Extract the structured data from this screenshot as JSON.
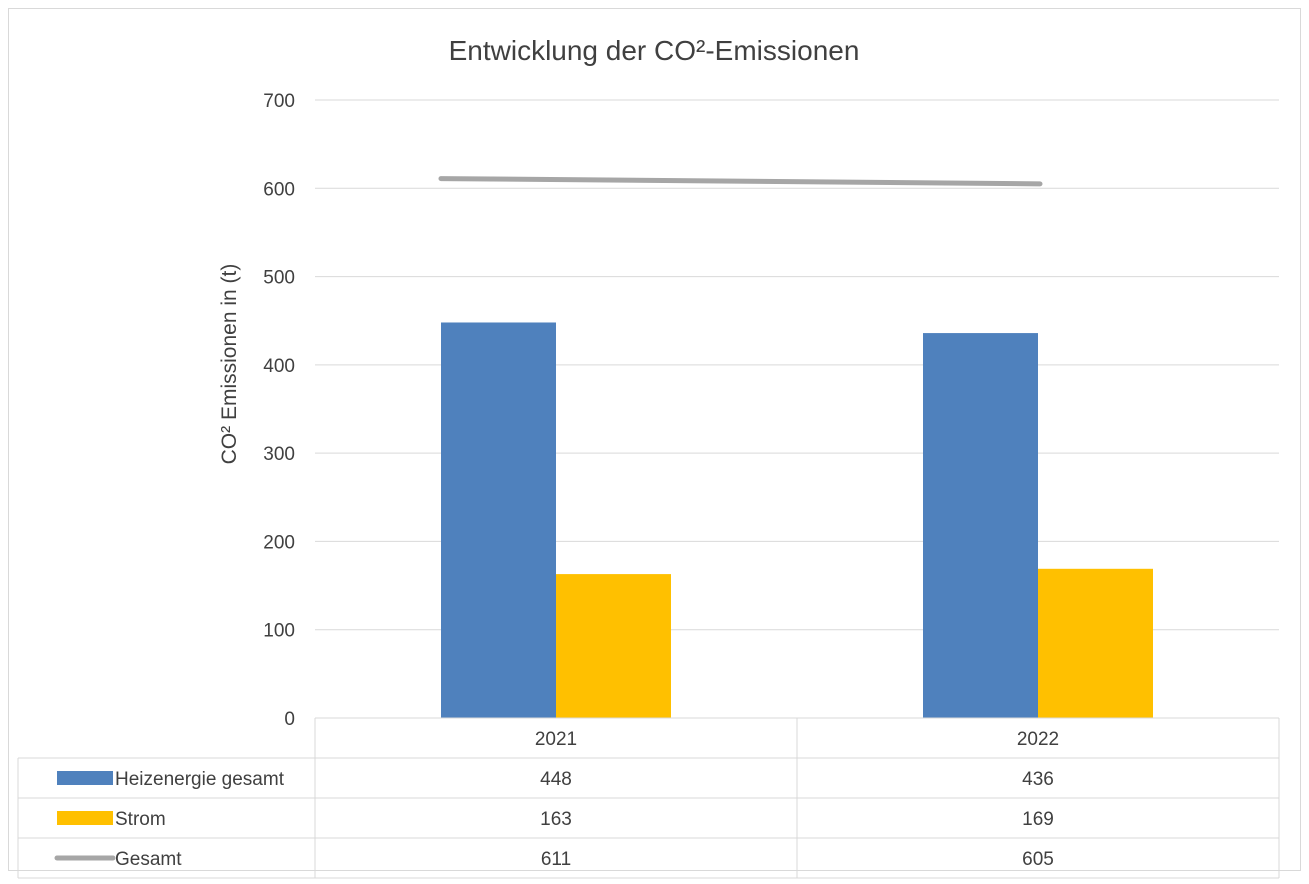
{
  "chart_data": {
    "type": "bar",
    "title": "Entwicklung der CO²-Emissionen",
    "xlabel": "",
    "ylabel": "CO² Emissionen in (t)",
    "ylim": [
      0,
      700
    ],
    "yticks": [
      0,
      100,
      200,
      300,
      400,
      500,
      600,
      700
    ],
    "categories": [
      "2021",
      "2022"
    ],
    "grid": true,
    "legend": "data-table",
    "series": [
      {
        "name": "Heizenergie gesamt",
        "type": "bar",
        "color": "#4F81BD",
        "values": [
          448,
          436
        ]
      },
      {
        "name": "Strom",
        "type": "bar",
        "color": "#FFC000",
        "values": [
          163,
          169
        ]
      },
      {
        "name": "Gesamt",
        "type": "line",
        "color": "#A6A6A6",
        "values": [
          611,
          605
        ]
      }
    ]
  }
}
